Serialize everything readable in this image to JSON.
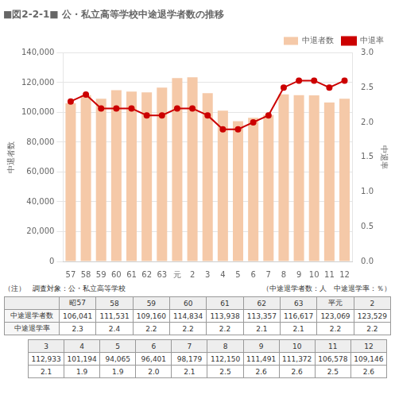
{
  "chart_data": {
    "type": "bar",
    "title": "■図2-2-1■ 公・私立高等学校中途退学者数の推移",
    "categories": [
      "57",
      "58",
      "59",
      "60",
      "61",
      "62",
      "63",
      "元",
      "2",
      "3",
      "4",
      "5",
      "6",
      "7",
      "8",
      "9",
      "10",
      "11",
      "12"
    ],
    "series": [
      {
        "name": "中退者数",
        "type": "bar",
        "axis": "y",
        "color": "#f5c9a8",
        "values": [
          106041,
          111531,
          109160,
          114834,
          113938,
          113357,
          116617,
          123069,
          123529,
          112933,
          101194,
          94065,
          96401,
          98179,
          112150,
          111491,
          111372,
          106578,
          109146
        ]
      },
      {
        "name": "中退率",
        "type": "line",
        "axis": "y2",
        "color": "#cc0000",
        "marker": "circle",
        "values": [
          2.3,
          2.4,
          2.2,
          2.2,
          2.2,
          2.1,
          2.1,
          2.2,
          2.2,
          2.1,
          1.9,
          1.9,
          2.0,
          2.1,
          2.5,
          2.6,
          2.6,
          2.5,
          2.6
        ]
      }
    ],
    "ylabel": "中退者数",
    "y2label": "中退率",
    "ylim": [
      0,
      140000
    ],
    "yticks": [
      0,
      {
        "value": 20000,
        "label": "20,000"
      },
      {
        "value": 40000,
        "label": "40,000"
      },
      {
        "value": 60000,
        "label": "60,000"
      },
      {
        "value": 80000,
        "label": "80,000"
      },
      {
        "value": 100000,
        "label": "100,000"
      },
      {
        "value": 120000,
        "label": "120,000"
      },
      {
        "value": 140000,
        "label": "140,000"
      }
    ],
    "y2lim": [
      0.0,
      3.0
    ],
    "y2ticks": [
      {
        "value": 0,
        "label": "0.0"
      },
      0.5,
      {
        "value": 1,
        "label": "1.0"
      },
      1.5,
      {
        "value": 2,
        "label": "2.0"
      },
      2.5,
      {
        "value": 3,
        "label": "3.0"
      }
    ],
    "grid": true,
    "legend": "upper right",
    "annotations": [
      "（注）　調査対象：公・私立高等学校",
      "（中途退学者数：人　中途退学率：％）"
    ],
    "tables": [
      {
        "columns": [
          "昭57",
          "58",
          "59",
          "60",
          "61",
          "62",
          "63",
          "平元",
          "2"
        ],
        "rows": [
          {
            "label": "中途退学者数",
            "values": [
              "106,041",
              "111,531",
              "109,160",
              "114,834",
              "113,938",
              "113,357",
              "116,617",
              "123,069",
              "123,529"
            ]
          },
          {
            "label": "中途退学率",
            "values": [
              "2.3",
              "2.4",
              "2.2",
              "2.2",
              "2.2",
              "2.1",
              "2.1",
              "2.2",
              "2.2"
            ]
          }
        ]
      },
      {
        "columns": [
          "3",
          "4",
          "5",
          "6",
          "7",
          "8",
          "9",
          "10",
          "11",
          "12"
        ],
        "rows": [
          {
            "values": [
              "112,933",
              "101,194",
              "94,065",
              "96,401",
              "98,179",
              "112,150",
              "111,491",
              "111,372",
              "106,578",
              "109,146"
            ]
          },
          {
            "values": [
              "2.1",
              "1.9",
              "1.9",
              "2.0",
              "2.1",
              "2.5",
              "2.6",
              "2.6",
              "2.5",
              "2.6"
            ]
          }
        ]
      }
    ]
  }
}
